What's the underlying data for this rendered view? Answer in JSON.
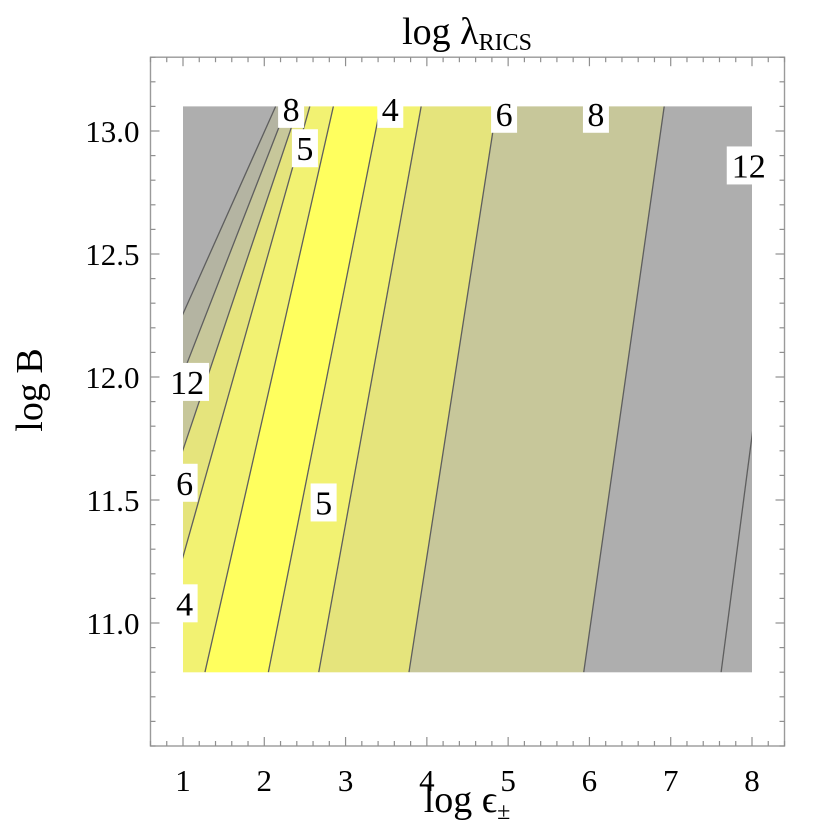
{
  "chart_data": {
    "type": "contour",
    "title": "log λ",
    "title_subscript": "RICS",
    "xlabel": "log ϵ",
    "xlabel_subscript": "±",
    "ylabel": "log B",
    "xlim": [
      1,
      8
    ],
    "ylim": [
      10.8,
      13.1
    ],
    "frame_xlim": [
      0.6,
      8.4
    ],
    "frame_ylim": [
      10.5,
      13.3
    ],
    "x_ticks": [
      1,
      2,
      3,
      4,
      5,
      6,
      7,
      8
    ],
    "x_tick_labels": [
      "1",
      "2",
      "3",
      "4",
      "5",
      "6",
      "7",
      "8"
    ],
    "y_ticks": [
      11.0,
      11.5,
      12.0,
      12.5,
      13.0
    ],
    "y_tick_labels": [
      "11.0",
      "11.5",
      "12.0",
      "12.5",
      "13.0"
    ],
    "contour_lines": [
      {
        "x_at_ymin": -0.97,
        "x_at_ymax": 2.14
      },
      {
        "x_at_ymin": -0.43,
        "x_at_ymax": 2.28
      },
      {
        "x_at_ymin": 0.08,
        "x_at_ymax": 2.42
      },
      {
        "x_at_ymin": 0.6,
        "x_at_ymax": 2.56
      },
      {
        "x_at_ymin": 1.27,
        "x_at_ymax": 2.85
      },
      {
        "x_at_ymin": 2.05,
        "x_at_ymax": 3.43
      },
      {
        "x_at_ymin": 2.67,
        "x_at_ymax": 3.93
      },
      {
        "x_at_ymin": 3.78,
        "x_at_ymax": 4.86
      },
      {
        "x_at_ymin": 5.93,
        "x_at_ymax": 6.92
      },
      {
        "x_at_ymin": 7.62,
        "x_at_ymax": 8.53
      }
    ],
    "region_colors": [
      "#aeaeae",
      "#b4b4a2",
      "#c7c79a",
      "#e5e47c",
      "#f2f272",
      "#ffff5e",
      "#f2f272",
      "#e5e47c",
      "#c7c79a",
      "#aeaeae",
      "#aeaeae"
    ],
    "contour_labels": [
      {
        "text": "8",
        "x": 2.33,
        "y": 13.09
      },
      {
        "text": "5",
        "x": 2.5,
        "y": 12.93
      },
      {
        "text": "4",
        "x": 3.55,
        "y": 13.09
      },
      {
        "text": "6",
        "x": 4.95,
        "y": 13.07
      },
      {
        "text": "8",
        "x": 6.08,
        "y": 13.07
      },
      {
        "text": "12",
        "x": 7.96,
        "y": 12.86
      },
      {
        "text": "12",
        "x": 1.05,
        "y": 11.98
      },
      {
        "text": "6",
        "x": 1.02,
        "y": 11.57
      },
      {
        "text": "5",
        "x": 2.73,
        "y": 11.49
      },
      {
        "text": "4",
        "x": 1.02,
        "y": 11.08
      }
    ]
  }
}
